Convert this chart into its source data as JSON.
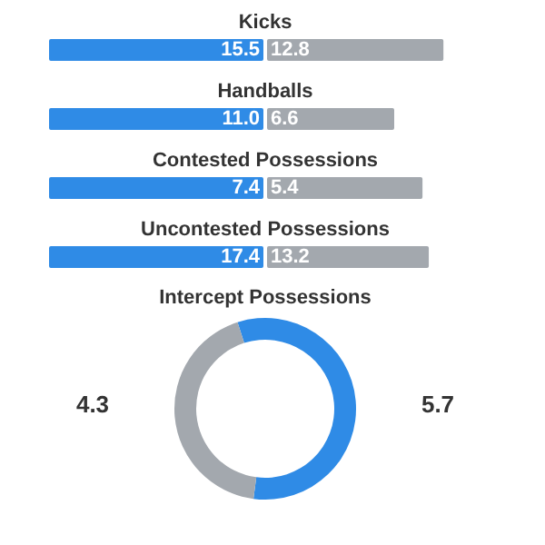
{
  "chart_data": [
    {
      "type": "bar",
      "orientation": "horizontal",
      "stacked": true,
      "title": "Kicks",
      "categories": [
        null
      ],
      "series": [
        {
          "color": "#2f8be6",
          "values": [
            15.5
          ],
          "value_labels": [
            "15.5"
          ]
        },
        {
          "color": "#a3a8ae",
          "values": [
            12.8
          ],
          "value_labels": [
            "12.8"
          ]
        }
      ]
    },
    {
      "type": "bar",
      "orientation": "horizontal",
      "stacked": true,
      "title": "Handballs",
      "categories": [
        null
      ],
      "series": [
        {
          "color": "#2f8be6",
          "values": [
            11.0
          ],
          "value_labels": [
            "11.0"
          ]
        },
        {
          "color": "#a3a8ae",
          "values": [
            6.6
          ],
          "value_labels": [
            "6.6"
          ]
        }
      ]
    },
    {
      "type": "bar",
      "orientation": "horizontal",
      "stacked": true,
      "title": "Contested Possessions",
      "categories": [
        null
      ],
      "series": [
        {
          "color": "#2f8be6",
          "values": [
            7.4
          ],
          "value_labels": [
            "7.4"
          ]
        },
        {
          "color": "#a3a8ae",
          "values": [
            5.4
          ],
          "value_labels": [
            "5.4"
          ]
        }
      ]
    },
    {
      "type": "bar",
      "orientation": "horizontal",
      "stacked": true,
      "title": "Uncontested Possessions",
      "categories": [
        null
      ],
      "series": [
        {
          "color": "#2f8be6",
          "values": [
            17.4
          ],
          "value_labels": [
            "17.4"
          ]
        },
        {
          "color": "#a3a8ae",
          "values": [
            13.2
          ],
          "value_labels": [
            "13.2"
          ]
        }
      ]
    },
    {
      "type": "donut",
      "title": "Intercept Possessions",
      "categories": [
        null,
        null
      ],
      "values": [
        5.7,
        4.3
      ],
      "colors": [
        "#2f8be6",
        "#a3a8ae"
      ],
      "data_labels": true
    }
  ]
}
